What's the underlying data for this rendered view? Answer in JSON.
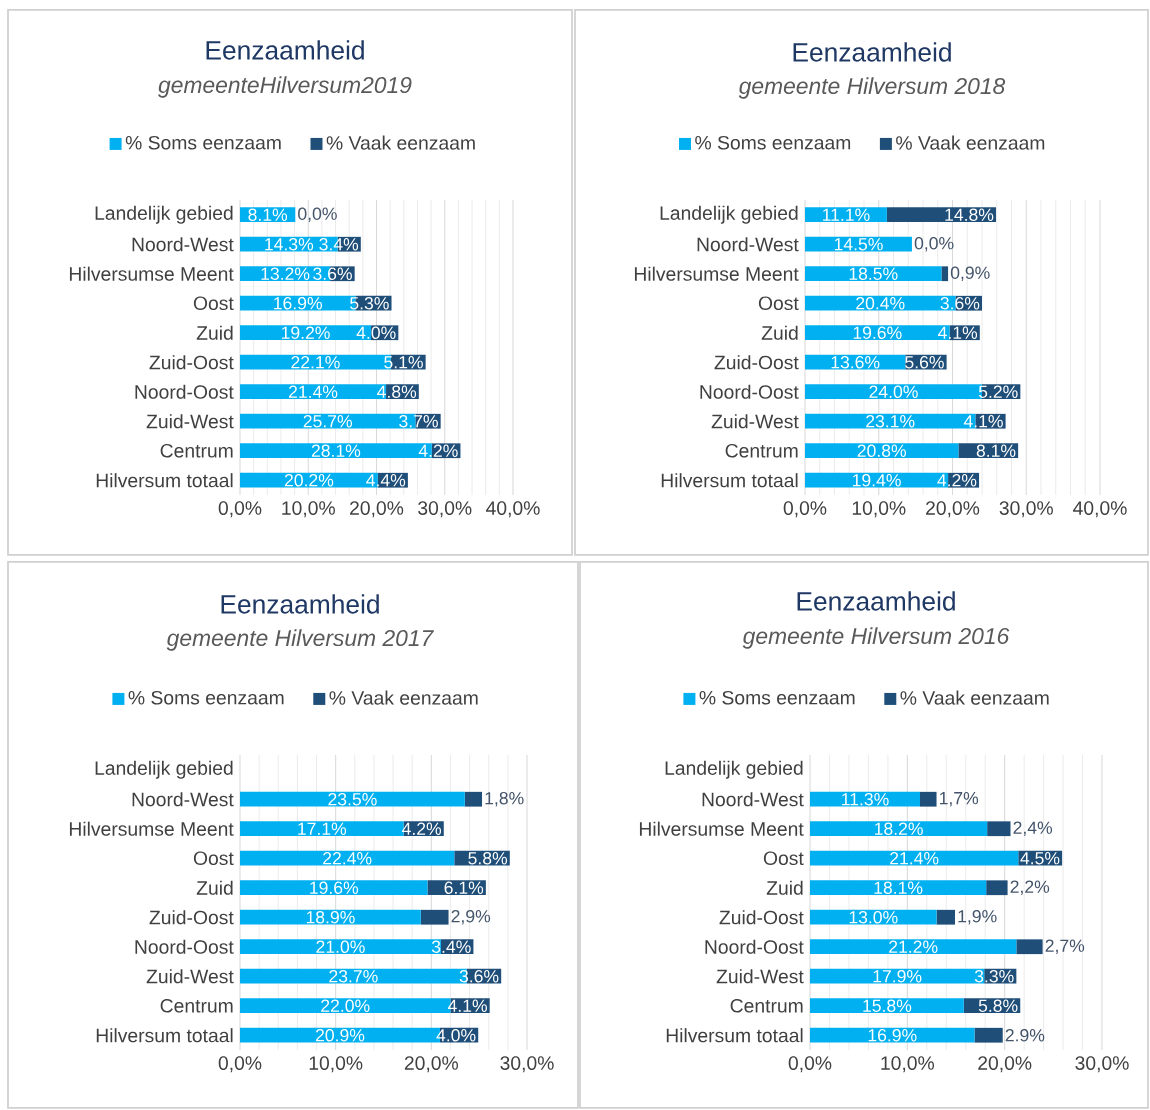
{
  "chart_data": [
    {
      "type": "bar",
      "orientation": "horizontal",
      "stacked": true,
      "title": "Eenzaamheid",
      "subtitle": "gemeenteHilversum2019",
      "categories": [
        "Landelijk gebied",
        "Noord-West",
        "Hilversumse Meent",
        "Oost",
        "Zuid",
        "Zuid-Oost",
        "Noord-Oost",
        "Zuid-West",
        "Centrum",
        "Hilversum totaal"
      ],
      "series": [
        {
          "name": "% Soms eenzaam",
          "color": "#00b0f0",
          "values": [
            8.1,
            14.3,
            13.2,
            16.9,
            19.2,
            22.1,
            21.4,
            25.7,
            28.1,
            20.2
          ],
          "value_labels": [
            "8.1%",
            "14.3%",
            "13.2%",
            "16.9%",
            "19.2%",
            "22.1%",
            "21.4%",
            "25.7%",
            "28.1%",
            "20.2%"
          ]
        },
        {
          "name": "% Vaak eenzaam",
          "color": "#1f4e79",
          "values": [
            0.0,
            3.4,
            3.6,
            5.3,
            4.0,
            5.1,
            4.8,
            3.7,
            4.2,
            4.4
          ],
          "value_labels": [
            "0,0%",
            "3.4%",
            "3.6%",
            "5.3%",
            "4.0%",
            "5.1%",
            "4.8%",
            "3.7%",
            "4.2%",
            "4.4%"
          ]
        }
      ],
      "xlim": [
        0,
        40
      ],
      "xticks": [
        {
          "value": 0,
          "label": "0,0%"
        },
        {
          "value": 10,
          "label": "10,0%"
        },
        {
          "value": 20,
          "label": "20,0%"
        },
        {
          "value": 30,
          "label": "30,0%"
        },
        {
          "value": 40,
          "label": "40,0%"
        }
      ],
      "grid": "x",
      "legend": "top"
    },
    {
      "type": "bar",
      "orientation": "horizontal",
      "stacked": true,
      "title": "Eenzaamheid",
      "subtitle": "gemeente Hilversum 2018",
      "categories": [
        "Landelijk gebied",
        "Noord-West",
        "Hilversumse Meent",
        "Oost",
        "Zuid",
        "Zuid-Oost",
        "Noord-Oost",
        "Zuid-West",
        "Centrum",
        "Hilversum totaal"
      ],
      "series": [
        {
          "name": "% Soms eenzaam",
          "color": "#00b0f0",
          "values": [
            11.1,
            14.5,
            18.5,
            20.4,
            19.6,
            13.6,
            24.0,
            23.1,
            20.8,
            19.4
          ],
          "value_labels": [
            "11.1%",
            "14.5%",
            "18.5%",
            "20.4%",
            "19.6%",
            "13.6%",
            "24.0%",
            "23.1%",
            "20.8%",
            "19.4%"
          ]
        },
        {
          "name": "% Vaak eenzaam",
          "color": "#1f4e79",
          "values": [
            14.8,
            0.0,
            0.9,
            3.6,
            4.1,
            5.6,
            5.2,
            4.1,
            8.1,
            4.2
          ],
          "value_labels": [
            "14.8%",
            "0,0%",
            "0,9%",
            "3.6%",
            "4.1%",
            "5.6%",
            "5.2%",
            "4.1%",
            "8.1%",
            "4.2%"
          ]
        }
      ],
      "xlim": [
        0,
        40
      ],
      "xticks": [
        {
          "value": 0,
          "label": "0,0%"
        },
        {
          "value": 10,
          "label": "10,0%"
        },
        {
          "value": 20,
          "label": "20,0%"
        },
        {
          "value": 30,
          "label": "30,0%"
        },
        {
          "value": 40,
          "label": "40,0%"
        }
      ],
      "grid": "x",
      "legend": "top"
    },
    {
      "type": "bar",
      "orientation": "horizontal",
      "stacked": true,
      "title": "Eenzaamheid",
      "subtitle": "gemeente Hilversum 2017",
      "categories": [
        "Landelijk gebied",
        "Noord-West",
        "Hilversumse Meent",
        "Oost",
        "Zuid",
        "Zuid-Oost",
        "Noord-Oost",
        "Zuid-West",
        "Centrum",
        "Hilversum totaal"
      ],
      "series": [
        {
          "name": "% Soms eenzaam",
          "color": "#00b0f0",
          "values": [
            null,
            23.5,
            17.1,
            22.4,
            19.6,
            18.9,
            21.0,
            23.7,
            22.0,
            20.9
          ],
          "value_labels": [
            null,
            "23.5%",
            "17.1%",
            "22.4%",
            "19.6%",
            "18.9%",
            "21.0%",
            "23.7%",
            "22.0%",
            "20.9%"
          ]
        },
        {
          "name": "% Vaak eenzaam",
          "color": "#1f4e79",
          "values": [
            null,
            1.8,
            4.2,
            5.8,
            6.1,
            2.9,
            3.4,
            3.6,
            4.1,
            4.0
          ],
          "value_labels": [
            null,
            "1,8%",
            "4.2%",
            "5.8%",
            "6.1%",
            "2,9%",
            "3.4%",
            "3.6%",
            "4.1%",
            "4.0%"
          ]
        }
      ],
      "xlim": [
        0,
        30
      ],
      "xticks": [
        {
          "value": 0,
          "label": "0,0%"
        },
        {
          "value": 10,
          "label": "10,0%"
        },
        {
          "value": 20,
          "label": "20,0%"
        },
        {
          "value": 30,
          "label": "30,0%"
        }
      ],
      "grid": "x",
      "legend": "top"
    },
    {
      "type": "bar",
      "orientation": "horizontal",
      "stacked": true,
      "title": "Eenzaamheid",
      "subtitle": "gemeente Hilversum 2016",
      "categories": [
        "Landelijk gebied",
        "Noord-West",
        "Hilversumse Meent",
        "Oost",
        "Zuid",
        "Zuid-Oost",
        "Noord-Oost",
        "Zuid-West",
        "Centrum",
        "Hilversum totaal"
      ],
      "series": [
        {
          "name": "% Soms eenzaam",
          "color": "#00b0f0",
          "values": [
            null,
            11.3,
            18.2,
            21.4,
            18.1,
            13.0,
            21.2,
            17.9,
            15.8,
            16.9
          ],
          "value_labels": [
            null,
            "11.3%",
            "18.2%",
            "21.4%",
            "18.1%",
            "13.0%",
            "21.2%",
            "17.9%",
            "15.8%",
            "16.9%"
          ]
        },
        {
          "name": "% Vaak eenzaam",
          "color": "#1f4e79",
          "values": [
            null,
            1.7,
            2.4,
            4.5,
            2.2,
            1.9,
            2.7,
            3.3,
            5.8,
            2.9
          ],
          "value_labels": [
            null,
            "1,7%",
            "2,4%",
            "4.5%",
            "2,2%",
            "1,9%",
            "2,7%",
            "3.3%",
            "5.8%",
            "2.9%"
          ]
        }
      ],
      "xlim": [
        0,
        30
      ],
      "xticks": [
        {
          "value": 0,
          "label": "0,0%"
        },
        {
          "value": 10,
          "label": "10,0%"
        },
        {
          "value": 20,
          "label": "20,0%"
        },
        {
          "value": 30,
          "label": "30,0%"
        }
      ],
      "grid": "x",
      "legend": "top"
    }
  ]
}
